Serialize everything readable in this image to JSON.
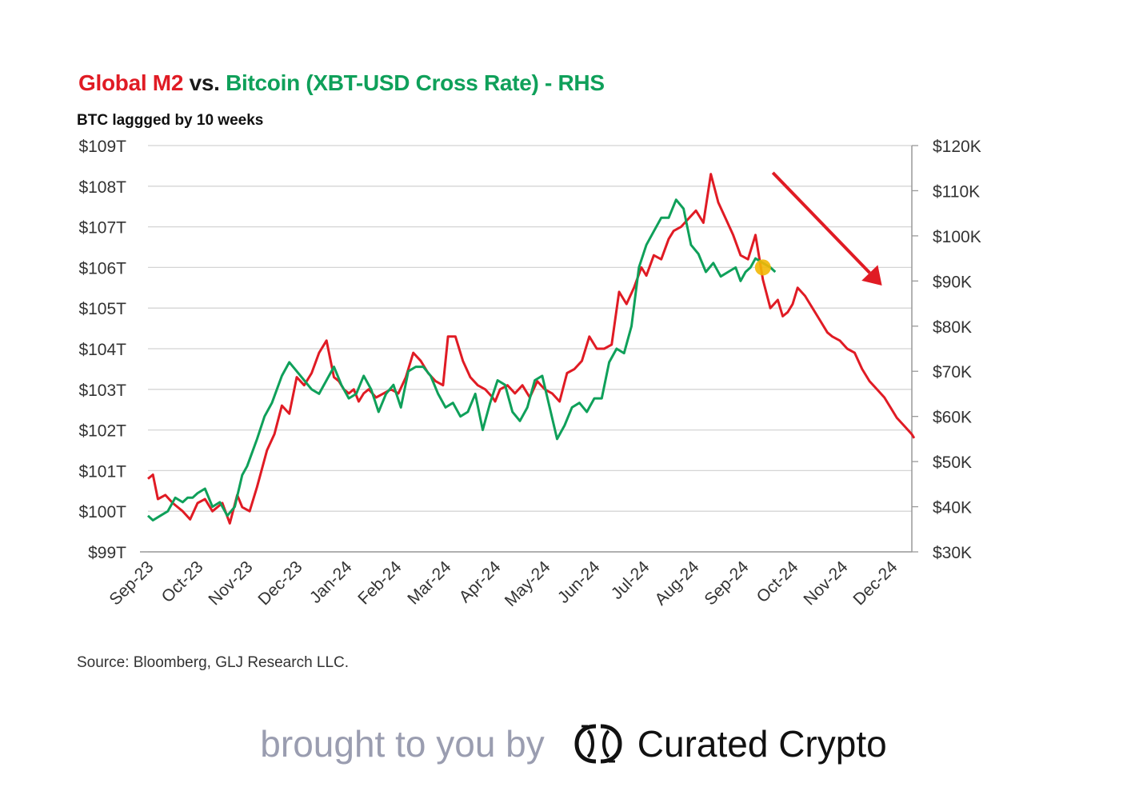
{
  "chart_data": {
    "type": "line",
    "title_parts": [
      "Global M2",
      "vs.",
      "Bitcoin (XBT-USD Cross Rate) - RHS"
    ],
    "subtitle": "BTC laggged by 10 weeks",
    "source": "Source: Bloomberg, GLJ Research LLC.",
    "categories": [
      "Sep-23",
      "Oct-23",
      "Nov-23",
      "Dec-23",
      "Jan-24",
      "Feb-24",
      "Mar-24",
      "Apr-24",
      "May-24",
      "Jun-24",
      "Jul-24",
      "Aug-24",
      "Sep-24",
      "Oct-24",
      "Nov-24",
      "Dec-24"
    ],
    "left_axis": {
      "ylim": [
        99,
        109
      ],
      "ticks": [
        99,
        100,
        101,
        102,
        103,
        104,
        105,
        106,
        107,
        108,
        109
      ],
      "tick_labels": [
        "$99T",
        "$100T",
        "$101T",
        "$102T",
        "$103T",
        "$104T",
        "$105T",
        "$106T",
        "$107T",
        "$108T",
        "$109T"
      ]
    },
    "right_axis": {
      "ylim": [
        30,
        120
      ],
      "ticks": [
        30,
        40,
        50,
        60,
        70,
        80,
        90,
        100,
        110,
        120
      ],
      "tick_labels": [
        "$30K",
        "$40K",
        "$50K",
        "$60K",
        "$70K",
        "$80K",
        "$90K",
        "$100K",
        "$110K",
        "$120K"
      ]
    },
    "series": [
      {
        "name": "Global M2",
        "axis": "left",
        "color": "#e01b24",
        "x": [
          0,
          0.1,
          0.2,
          0.35,
          0.5,
          0.7,
          0.85,
          1.0,
          1.15,
          1.3,
          1.5,
          1.65,
          1.8,
          1.9,
          2.05,
          2.2,
          2.4,
          2.55,
          2.7,
          2.85,
          3.0,
          3.15,
          3.3,
          3.45,
          3.6,
          3.75,
          3.85,
          3.95,
          4.05,
          4.15,
          4.25,
          4.35,
          4.45,
          4.6,
          4.75,
          4.9,
          5.05,
          5.2,
          5.35,
          5.5,
          5.65,
          5.8,
          5.95,
          6.05,
          6.2,
          6.35,
          6.5,
          6.65,
          6.8,
          6.95,
          7.0,
          7.1,
          7.25,
          7.4,
          7.55,
          7.7,
          7.85,
          8.0,
          8.15,
          8.3,
          8.45,
          8.6,
          8.75,
          8.9,
          9.05,
          9.2,
          9.35,
          9.5,
          9.65,
          9.8,
          9.95,
          10.05,
          10.2,
          10.35,
          10.5,
          10.6,
          10.75,
          10.9,
          11.05,
          11.2,
          11.35,
          11.5,
          11.65,
          11.8,
          11.95,
          12.1,
          12.25,
          12.4,
          12.55,
          12.7,
          12.8,
          12.9,
          13.0,
          13.1,
          13.25,
          13.4,
          13.55,
          13.7,
          13.8,
          13.95,
          14.1,
          14.25,
          14.4,
          14.55,
          14.7,
          14.85,
          14.95,
          15.1,
          15.25,
          15.4,
          15.45
        ],
        "values": [
          100.8,
          100.9,
          100.3,
          100.4,
          100.2,
          100.0,
          99.8,
          100.2,
          100.3,
          100.0,
          100.2,
          99.7,
          100.4,
          100.1,
          100.0,
          100.6,
          101.5,
          101.9,
          102.6,
          102.4,
          103.3,
          103.1,
          103.4,
          103.9,
          104.2,
          103.3,
          103.2,
          103.0,
          102.9,
          103.0,
          102.7,
          102.9,
          103.0,
          102.8,
          102.9,
          103.0,
          102.9,
          103.3,
          103.9,
          103.7,
          103.4,
          103.2,
          103.1,
          104.3,
          104.3,
          103.7,
          103.3,
          103.1,
          103.0,
          102.8,
          102.7,
          103.0,
          103.1,
          102.9,
          103.1,
          102.8,
          103.2,
          103.0,
          102.9,
          102.7,
          103.4,
          103.5,
          103.7,
          104.3,
          104.0,
          104.0,
          104.1,
          105.4,
          105.1,
          105.5,
          106.0,
          105.8,
          106.3,
          106.2,
          106.7,
          106.9,
          107.0,
          107.2,
          107.4,
          107.1,
          108.3,
          107.6,
          107.2,
          106.8,
          106.3,
          106.2,
          106.8,
          105.7,
          105.0,
          105.2,
          104.8,
          104.9,
          105.1,
          105.5,
          105.3,
          105.0,
          104.7,
          104.4,
          104.3,
          104.2,
          104.0,
          103.9,
          103.5,
          103.2,
          103.0,
          102.8,
          102.6,
          102.3,
          102.1,
          101.9,
          101.8
        ]
      },
      {
        "name": "Bitcoin (XBT-USD Cross Rate) - RHS",
        "axis": "right",
        "color": "#0fa05a",
        "x": [
          0,
          0.1,
          0.25,
          0.4,
          0.55,
          0.7,
          0.8,
          0.9,
          1.0,
          1.15,
          1.3,
          1.45,
          1.6,
          1.75,
          1.9,
          2.0,
          2.1,
          2.2,
          2.35,
          2.5,
          2.7,
          2.85,
          3.0,
          3.15,
          3.3,
          3.45,
          3.6,
          3.75,
          3.9,
          4.05,
          4.2,
          4.35,
          4.5,
          4.65,
          4.8,
          4.95,
          5.1,
          5.25,
          5.4,
          5.55,
          5.7,
          5.85,
          6.0,
          6.15,
          6.3,
          6.45,
          6.6,
          6.75,
          6.9,
          7.05,
          7.2,
          7.35,
          7.5,
          7.65,
          7.8,
          7.95,
          8.1,
          8.25,
          8.4,
          8.55,
          8.7,
          8.85,
          9.0,
          9.15,
          9.3,
          9.45,
          9.6,
          9.75,
          9.9,
          10.05,
          10.2,
          10.35,
          10.5,
          10.65,
          10.8,
          10.95,
          11.1,
          11.25,
          11.4,
          11.55,
          11.7,
          11.85,
          11.95,
          12.05,
          12.15,
          12.25,
          12.4,
          12.55,
          12.65
        ],
        "values": [
          38,
          37,
          38,
          39,
          42,
          41,
          42,
          42,
          43,
          44,
          40,
          41,
          38,
          40,
          47,
          49,
          52,
          55,
          60,
          63,
          69,
          72,
          70,
          68,
          66,
          65,
          68,
          71,
          67,
          64,
          65,
          69,
          66,
          61,
          65,
          67,
          62,
          70,
          71,
          71,
          69,
          65,
          62,
          63,
          60,
          61,
          65,
          57,
          63,
          68,
          67,
          61,
          59,
          62,
          68,
          69,
          62,
          55,
          58,
          62,
          63,
          61,
          64,
          64,
          72,
          75,
          74,
          80,
          93,
          98,
          101,
          104,
          104,
          108,
          106,
          98,
          96,
          92,
          94,
          91,
          92,
          93,
          90,
          92,
          93,
          95,
          94,
          93,
          92
        ]
      }
    ],
    "markers": [
      {
        "label": "Oct-24 BTC marker",
        "x": 12.4,
        "y": 93,
        "axis": "right",
        "color": "#f2b705"
      }
    ],
    "annotations": [
      {
        "type": "arrow",
        "color": "#e01b24",
        "from": [
          12.6,
          114
        ],
        "to": [
          14.8,
          89
        ],
        "axis": "right"
      }
    ]
  },
  "colors": {
    "m2": "#e01b24",
    "btc": "#0fa05a",
    "vs": "#1a1a1a",
    "gridline": "#d4d4d4"
  },
  "footer": {
    "prefix": "brought to you by",
    "brand": "Curated Crypto",
    "logo_icon": "curated-crypto-logo-icon"
  }
}
